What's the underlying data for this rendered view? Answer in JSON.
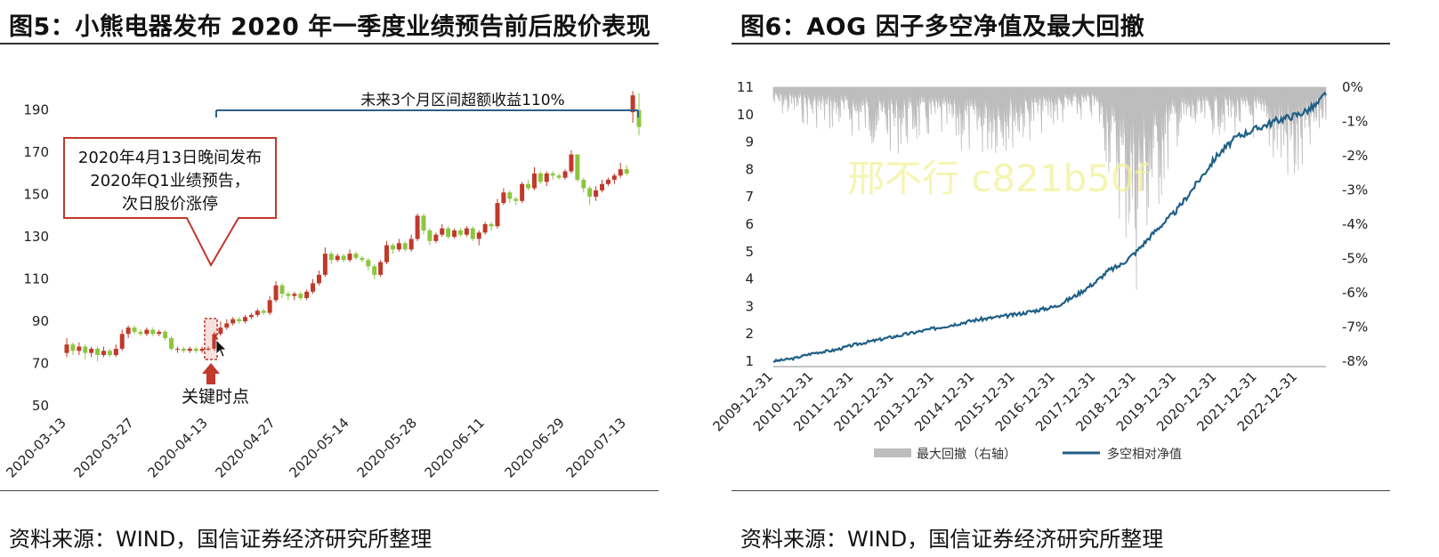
{
  "left": {
    "title": "图5：小熊电器发布 2020 年一季度业绩预告前后股价表现",
    "source": "资料来源：WIND，国信证券经济研究所整理",
    "callout_lines": [
      "2020年4月13日晚间发布",
      "2020年Q1业绩预告，",
      "次日股价涨停"
    ],
    "bracket_label": "未来3个月区间超额收益110%",
    "key_label": "关键时点",
    "colors": {
      "up": "#c0392b",
      "down": "#8cc63f",
      "callout_border": "#c0392b",
      "bracket": "#2e5f8a",
      "arrow": "#c0392b"
    }
  },
  "right": {
    "title": "图6：AOG 因子多空净值及最大回撤",
    "source": "资料来源：WIND，国信证券经济研究所整理",
    "watermark": "邢不行 c821b50f",
    "colors": {
      "drawdown": "#bdbdbd",
      "nav": "#1f5f86"
    }
  },
  "chart_data": [
    {
      "type": "candlestick",
      "x_ticks": [
        "2020-03-13",
        "2020-03-27",
        "2020-04-13",
        "2020-04-27",
        "2020-05-14",
        "2020-05-28",
        "2020-06-11",
        "2020-06-29",
        "2020-07-13"
      ],
      "y_ticks": [
        50,
        70,
        90,
        110,
        130,
        150,
        170,
        190
      ],
      "ylim": [
        50,
        200
      ],
      "candles": [
        {
          "o": 75,
          "c": 79,
          "h": 82,
          "l": 73
        },
        {
          "o": 79,
          "c": 76,
          "h": 80,
          "l": 74
        },
        {
          "o": 76,
          "c": 78,
          "h": 80,
          "l": 74
        },
        {
          "o": 78,
          "c": 75,
          "h": 79,
          "l": 72
        },
        {
          "o": 75,
          "c": 77,
          "h": 78,
          "l": 73
        },
        {
          "o": 77,
          "c": 74,
          "h": 78,
          "l": 71
        },
        {
          "o": 74,
          "c": 76,
          "h": 78,
          "l": 73
        },
        {
          "o": 76,
          "c": 74,
          "h": 77,
          "l": 73
        },
        {
          "o": 74,
          "c": 77,
          "h": 79,
          "l": 73
        },
        {
          "o": 77,
          "c": 84,
          "h": 86,
          "l": 76
        },
        {
          "o": 84,
          "c": 87,
          "h": 88,
          "l": 82
        },
        {
          "o": 87,
          "c": 85,
          "h": 88,
          "l": 84
        },
        {
          "o": 85,
          "c": 84,
          "h": 86,
          "l": 83
        },
        {
          "o": 84,
          "c": 86,
          "h": 87,
          "l": 83
        },
        {
          "o": 86,
          "c": 84,
          "h": 87,
          "l": 83
        },
        {
          "o": 84,
          "c": 85,
          "h": 86,
          "l": 83
        },
        {
          "o": 85,
          "c": 82,
          "h": 86,
          "l": 81
        },
        {
          "o": 82,
          "c": 77,
          "h": 83,
          "l": 76
        },
        {
          "o": 77,
          "c": 77,
          "h": 78,
          "l": 75
        },
        {
          "o": 77,
          "c": 76,
          "h": 78,
          "l": 75
        },
        {
          "o": 76,
          "c": 77,
          "h": 78,
          "l": 75
        },
        {
          "o": 77,
          "c": 76,
          "h": 78,
          "l": 75
        },
        {
          "o": 76,
          "c": 77,
          "h": 78,
          "l": 75
        },
        {
          "o": 77,
          "c": 77,
          "h": 78,
          "l": 76
        },
        {
          "o": 77,
          "c": 84,
          "h": 85,
          "l": 76
        },
        {
          "o": 84,
          "c": 87,
          "h": 90,
          "l": 83
        },
        {
          "o": 87,
          "c": 89,
          "h": 91,
          "l": 86
        },
        {
          "o": 89,
          "c": 91,
          "h": 92,
          "l": 88
        },
        {
          "o": 91,
          "c": 90,
          "h": 92,
          "l": 89
        },
        {
          "o": 90,
          "c": 92,
          "h": 93,
          "l": 89
        },
        {
          "o": 92,
          "c": 93,
          "h": 94,
          "l": 91
        },
        {
          "o": 93,
          "c": 95,
          "h": 96,
          "l": 92
        },
        {
          "o": 95,
          "c": 94,
          "h": 96,
          "l": 93
        },
        {
          "o": 94,
          "c": 100,
          "h": 102,
          "l": 93
        },
        {
          "o": 100,
          "c": 107,
          "h": 109,
          "l": 99
        },
        {
          "o": 107,
          "c": 103,
          "h": 108,
          "l": 101
        },
        {
          "o": 103,
          "c": 102,
          "h": 104,
          "l": 100
        },
        {
          "o": 102,
          "c": 103,
          "h": 104,
          "l": 100
        },
        {
          "o": 103,
          "c": 101,
          "h": 104,
          "l": 100
        },
        {
          "o": 101,
          "c": 104,
          "h": 105,
          "l": 100
        },
        {
          "o": 104,
          "c": 108,
          "h": 110,
          "l": 103
        },
        {
          "o": 108,
          "c": 112,
          "h": 114,
          "l": 107
        },
        {
          "o": 112,
          "c": 122,
          "h": 125,
          "l": 111
        },
        {
          "o": 122,
          "c": 119,
          "h": 123,
          "l": 117
        },
        {
          "o": 119,
          "c": 121,
          "h": 122,
          "l": 118
        },
        {
          "o": 121,
          "c": 119,
          "h": 122,
          "l": 118
        },
        {
          "o": 119,
          "c": 122,
          "h": 124,
          "l": 118
        },
        {
          "o": 122,
          "c": 120,
          "h": 123,
          "l": 119
        },
        {
          "o": 120,
          "c": 119,
          "h": 121,
          "l": 118
        },
        {
          "o": 119,
          "c": 116,
          "h": 120,
          "l": 114
        },
        {
          "o": 116,
          "c": 112,
          "h": 117,
          "l": 110
        },
        {
          "o": 112,
          "c": 118,
          "h": 119,
          "l": 111
        },
        {
          "o": 118,
          "c": 126,
          "h": 128,
          "l": 117
        },
        {
          "o": 126,
          "c": 124,
          "h": 127,
          "l": 122
        },
        {
          "o": 124,
          "c": 127,
          "h": 129,
          "l": 123
        },
        {
          "o": 127,
          "c": 124,
          "h": 128,
          "l": 123
        },
        {
          "o": 124,
          "c": 129,
          "h": 131,
          "l": 123
        },
        {
          "o": 129,
          "c": 140,
          "h": 141,
          "l": 128
        },
        {
          "o": 140,
          "c": 133,
          "h": 141,
          "l": 131
        },
        {
          "o": 133,
          "c": 128,
          "h": 134,
          "l": 126
        },
        {
          "o": 128,
          "c": 131,
          "h": 132,
          "l": 127
        },
        {
          "o": 131,
          "c": 134,
          "h": 136,
          "l": 130
        },
        {
          "o": 134,
          "c": 130,
          "h": 135,
          "l": 129
        },
        {
          "o": 130,
          "c": 133,
          "h": 134,
          "l": 129
        },
        {
          "o": 133,
          "c": 131,
          "h": 134,
          "l": 130
        },
        {
          "o": 131,
          "c": 134,
          "h": 135,
          "l": 130
        },
        {
          "o": 134,
          "c": 129,
          "h": 135,
          "l": 128
        },
        {
          "o": 129,
          "c": 132,
          "h": 133,
          "l": 126
        },
        {
          "o": 132,
          "c": 136,
          "h": 137,
          "l": 131
        },
        {
          "o": 136,
          "c": 135,
          "h": 137,
          "l": 133
        },
        {
          "o": 135,
          "c": 146,
          "h": 148,
          "l": 134
        },
        {
          "o": 146,
          "c": 151,
          "h": 153,
          "l": 145
        },
        {
          "o": 151,
          "c": 148,
          "h": 152,
          "l": 146
        },
        {
          "o": 148,
          "c": 147,
          "h": 149,
          "l": 145
        },
        {
          "o": 147,
          "c": 155,
          "h": 156,
          "l": 146
        },
        {
          "o": 155,
          "c": 153,
          "h": 157,
          "l": 152
        },
        {
          "o": 153,
          "c": 160,
          "h": 163,
          "l": 152
        },
        {
          "o": 160,
          "c": 156,
          "h": 161,
          "l": 155
        },
        {
          "o": 156,
          "c": 160,
          "h": 161,
          "l": 154
        },
        {
          "o": 160,
          "c": 159,
          "h": 161,
          "l": 157
        },
        {
          "o": 159,
          "c": 158,
          "h": 160,
          "l": 157
        },
        {
          "o": 158,
          "c": 161,
          "h": 162,
          "l": 157
        },
        {
          "o": 161,
          "c": 169,
          "h": 171,
          "l": 160
        },
        {
          "o": 169,
          "c": 157,
          "h": 169,
          "l": 156
        },
        {
          "o": 157,
          "c": 153,
          "h": 158,
          "l": 151
        },
        {
          "o": 153,
          "c": 149,
          "h": 154,
          "l": 145
        },
        {
          "o": 149,
          "c": 152,
          "h": 154,
          "l": 147
        },
        {
          "o": 152,
          "c": 155,
          "h": 157,
          "l": 151
        },
        {
          "o": 155,
          "c": 157,
          "h": 158,
          "l": 154
        },
        {
          "o": 157,
          "c": 159,
          "h": 160,
          "l": 155
        },
        {
          "o": 159,
          "c": 162,
          "h": 165,
          "l": 158
        },
        {
          "o": 162,
          "c": 160,
          "h": 164,
          "l": 159
        },
        {
          "o": 189,
          "c": 197,
          "h": 199,
          "l": 184
        },
        {
          "o": 190,
          "c": 182,
          "h": 198,
          "l": 178
        }
      ],
      "key_index": 24
    },
    {
      "type": "line+area",
      "x_ticks": [
        "2009-12-31",
        "2010-12-31",
        "2011-12-31",
        "2012-12-31",
        "2013-12-31",
        "2014-12-31",
        "2015-12-31",
        "2016-12-31",
        "2017-12-31",
        "2018-12-31",
        "2019-12-31",
        "2020-12-31",
        "2021-12-31",
        "2022-12-31"
      ],
      "y_left_ticks": [
        1,
        2,
        3,
        4,
        5,
        6,
        7,
        8,
        9,
        10,
        11
      ],
      "y_left_lim": [
        1,
        11
      ],
      "y_right_ticks": [
        "0%",
        "-1%",
        "-2%",
        "-3%",
        "-4%",
        "-5%",
        "-6%",
        "-7%",
        "-8%"
      ],
      "y_right_lim": [
        -0.08,
        0
      ],
      "legend": [
        "最大回撤（右轴）",
        "多空相对净值"
      ],
      "series": [
        {
          "name": "多空相对净值",
          "x": [
            0,
            0.5,
            1,
            1.5,
            2,
            2.5,
            3,
            3.5,
            4,
            4.5,
            5,
            5.5,
            6,
            6.5,
            7,
            7.5,
            8,
            8.3,
            8.6,
            9,
            9.5,
            10,
            10.5,
            11,
            11.5,
            12,
            12.5,
            13,
            13.3,
            13.5,
            13.7
          ],
          "values": [
            1.0,
            1.1,
            1.3,
            1.4,
            1.6,
            1.75,
            1.9,
            2.05,
            2.2,
            2.35,
            2.5,
            2.6,
            2.7,
            2.85,
            3.0,
            3.4,
            3.9,
            4.3,
            4.5,
            5.0,
            5.8,
            6.5,
            7.5,
            8.5,
            9.2,
            9.5,
            9.8,
            10.0,
            10.2,
            10.4,
            10.8
          ]
        },
        {
          "name": "最大回撤（右轴）",
          "x": [
            0,
            1,
            2,
            3,
            4,
            5,
            6,
            7,
            8,
            9,
            10,
            11,
            12,
            13,
            13.7
          ],
          "values": [
            -0.008,
            -0.012,
            -0.015,
            -0.02,
            -0.016,
            -0.022,
            -0.018,
            -0.012,
            -0.01,
            -0.062,
            -0.018,
            -0.014,
            -0.016,
            -0.035,
            -0.01
          ]
        }
      ]
    }
  ]
}
